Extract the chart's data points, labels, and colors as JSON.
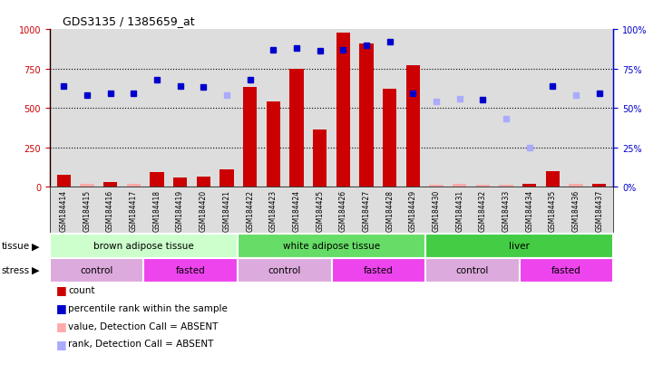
{
  "title": "GDS3135 / 1385659_at",
  "samples": [
    "GSM184414",
    "GSM184415",
    "GSM184416",
    "GSM184417",
    "GSM184418",
    "GSM184419",
    "GSM184420",
    "GSM184421",
    "GSM184422",
    "GSM184423",
    "GSM184424",
    "GSM184425",
    "GSM184426",
    "GSM184427",
    "GSM184428",
    "GSM184429",
    "GSM184430",
    "GSM184431",
    "GSM184432",
    "GSM184433",
    "GSM184434",
    "GSM184435",
    "GSM184436",
    "GSM184437"
  ],
  "count_values": [
    75,
    20,
    30,
    15,
    90,
    55,
    65,
    110,
    630,
    540,
    750,
    360,
    980,
    910,
    620,
    770,
    10,
    15,
    10,
    10,
    15,
    100,
    15,
    15
  ],
  "count_absent": [
    false,
    true,
    false,
    true,
    false,
    false,
    false,
    false,
    false,
    false,
    false,
    false,
    false,
    false,
    false,
    false,
    true,
    true,
    true,
    true,
    false,
    false,
    true,
    false
  ],
  "rank_values": [
    64,
    58,
    59,
    59,
    68,
    64,
    63,
    58,
    68,
    87,
    88,
    86,
    87,
    90,
    92,
    59,
    54,
    56,
    55,
    43,
    25,
    64,
    58,
    59
  ],
  "rank_absent": [
    false,
    false,
    false,
    false,
    false,
    false,
    false,
    true,
    false,
    false,
    false,
    false,
    false,
    false,
    false,
    false,
    true,
    true,
    false,
    true,
    true,
    false,
    true,
    false
  ],
  "ylim_left": [
    0,
    1000
  ],
  "ylim_right": [
    0,
    100
  ],
  "yticks_left": [
    0,
    250,
    500,
    750,
    1000
  ],
  "yticks_right": [
    0,
    25,
    50,
    75,
    100
  ],
  "tissue_groups": [
    {
      "label": "brown adipose tissue",
      "start": 0,
      "end": 8,
      "color": "#ccffcc"
    },
    {
      "label": "white adipose tissue",
      "start": 8,
      "end": 16,
      "color": "#66dd66"
    },
    {
      "label": "liver",
      "start": 16,
      "end": 24,
      "color": "#44cc44"
    }
  ],
  "stress_groups": [
    {
      "label": "control",
      "start": 0,
      "end": 4,
      "color": "#ddaadd"
    },
    {
      "label": "fasted",
      "start": 4,
      "end": 8,
      "color": "#ee44ee"
    },
    {
      "label": "control",
      "start": 8,
      "end": 12,
      "color": "#ddaadd"
    },
    {
      "label": "fasted",
      "start": 12,
      "end": 16,
      "color": "#ee44ee"
    },
    {
      "label": "control",
      "start": 16,
      "end": 20,
      "color": "#ddaadd"
    },
    {
      "label": "fasted",
      "start": 20,
      "end": 24,
      "color": "#ee44ee"
    }
  ],
  "bar_color": "#cc0000",
  "bar_absent_color": "#ffaaaa",
  "rank_color": "#0000cc",
  "rank_absent_color": "#aaaaff",
  "bg_color": "#ffffff",
  "plot_bg_color": "#dddddd",
  "axis_left_color": "#cc0000",
  "axis_right_color": "#0000cc"
}
